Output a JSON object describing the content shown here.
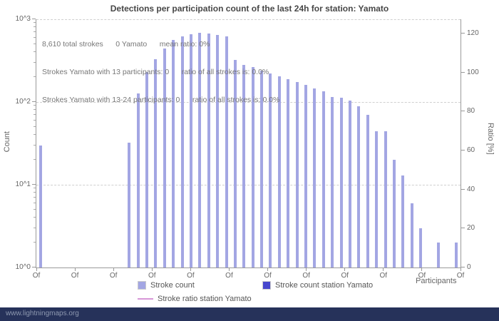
{
  "footer": {
    "watermark": "www.lightningmaps.org"
  },
  "colors": {
    "bar": "#a3a6e3",
    "station_bar": "#4747cd",
    "ratio_line": "#d796d7",
    "grid": "#cfcfcf",
    "footer_bg": "#26325a",
    "footer_text": "#8e99b0"
  },
  "chart_data": {
    "type": "bar",
    "title": "Detections per participation count of the last 24h for station: Yamato",
    "xlabel": "Participants",
    "ylabel_left": "Count",
    "ylabel_right": "Ratio [%]",
    "y_scale": "log",
    "ylim_left": [
      1,
      1000
    ],
    "ylim_right": [
      0,
      120
    ],
    "grid": "dashed horizontal at decades",
    "legend_position": "bottom",
    "annotations": [
      "8,610 total strokes      0 Yamato      mean ratio: 0%",
      "Strokes Yamato with 13 participants: 0      ratio of all strokes is: 0.0%",
      "Strokes Yamato with 13-24 participants: 0      ratio of all strokes is: 0.0%"
    ],
    "y_ticks_left": [
      "10^0",
      "10^1",
      "10^2",
      "10^3"
    ],
    "y_ticks_right": [
      "0",
      "20",
      "40",
      "60",
      "80",
      "100",
      "120"
    ],
    "x_ticks": [
      "Of",
      "Of",
      "Of",
      "Of",
      "Of",
      "Of",
      "Of",
      "Of",
      "Of",
      "Of",
      "Of",
      "Of"
    ],
    "total_strokes": "8,610",
    "station_strokes": 0,
    "mean_ratio": "0%",
    "series": [
      {
        "name": "Stroke count",
        "type": "bar",
        "color": "#a3a6e3",
        "values": [
          30,
          0,
          0,
          0,
          0,
          0,
          0,
          0,
          0,
          0,
          32,
          128,
          230,
          330,
          440,
          565,
          625,
          665,
          680,
          670,
          645,
          615,
          320,
          280,
          262,
          240,
          220,
          205,
          188,
          176,
          160,
          146,
          134,
          116,
          112,
          104,
          88,
          70,
          44,
          44,
          20,
          13,
          6,
          3,
          0,
          2,
          0,
          2
        ]
      },
      {
        "name": "Stroke count station Yamato",
        "type": "bar",
        "color": "#4747cd",
        "total": 0,
        "values_note": "all zero - no visible bars"
      },
      {
        "name": "Stroke ratio station Yamato",
        "type": "line",
        "color": "#d796d7",
        "mean": "0%",
        "values_note": "all zero - no visible line"
      }
    ]
  }
}
